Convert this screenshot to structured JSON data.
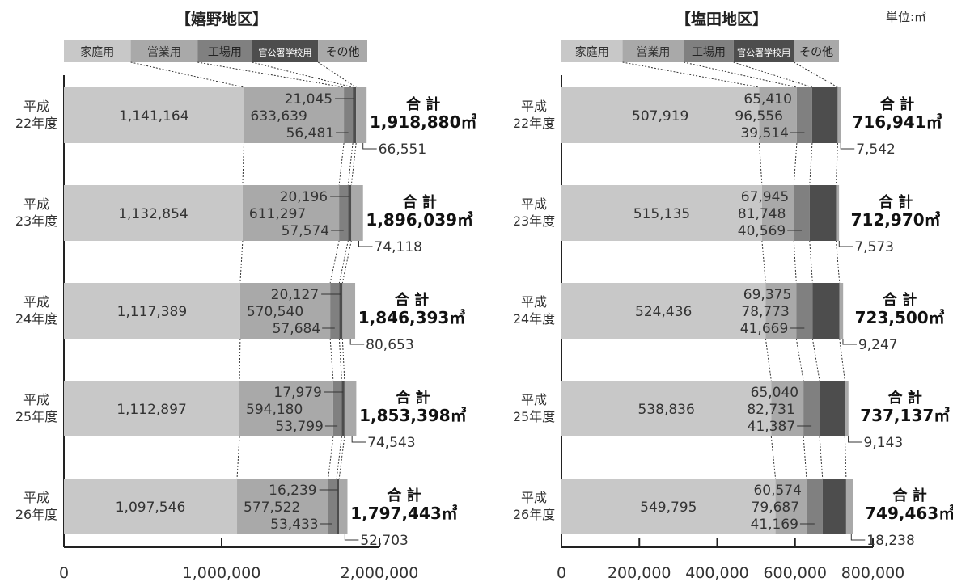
{
  "unit_label": "単位:㎥",
  "colors": {
    "household": "#c8c8c8",
    "business": "#a9a9a9",
    "industrial": "#808080",
    "government_school": "#4d4d4d",
    "other": "#a9a9a9",
    "text": "#333333",
    "total_text": "#111111"
  },
  "chart_data": [
    {
      "type": "bar",
      "orientation": "horizontal",
      "stacked": true,
      "title": "【嬉野地区】",
      "legend": [
        "家庭用",
        "営業用",
        "工場用",
        "官公署学校用",
        "その他"
      ],
      "legend_placement": "top",
      "categories": [
        [
          "平成",
          "22年度"
        ],
        [
          "平成",
          "23年度"
        ],
        [
          "平成",
          "24年度"
        ],
        [
          "平成",
          "25年度"
        ],
        [
          "平成",
          "26年度"
        ]
      ],
      "series": [
        {
          "name": "家庭用",
          "values": [
            1141164,
            1132854,
            1117389,
            1112897,
            1097546
          ],
          "labels": [
            "1,141,164",
            "1,132,854",
            "1,117,389",
            "1,112,897",
            "1,097,546"
          ]
        },
        {
          "name": "営業用",
          "values": [
            633639,
            611297,
            570540,
            594180,
            577522
          ],
          "labels": [
            "633,639",
            "611,297",
            "570,540",
            "594,180",
            "577,522"
          ]
        },
        {
          "name": "工場用",
          "values": [
            56481,
            57574,
            57684,
            53799,
            53433
          ],
          "labels": [
            "56,481",
            "57,574",
            "57,684",
            "53,799",
            "53,433"
          ]
        },
        {
          "name": "官公署学校用",
          "values": [
            21045,
            20196,
            20127,
            17979,
            16239
          ],
          "labels": [
            "21,045",
            "20,196",
            "20,127",
            "17,979",
            "16,239"
          ]
        },
        {
          "name": "その他",
          "values": [
            66551,
            74118,
            80653,
            74543,
            52703
          ],
          "labels": [
            "66,551",
            "74,118",
            "80,653",
            "74,543",
            "52,703"
          ]
        }
      ],
      "total_label": "合 計",
      "totals": [
        "1,918,880㎥",
        "1,896,039㎥",
        "1,846,393㎥",
        "1,853,398㎥",
        "1,797,443㎥"
      ],
      "xlim": [
        0,
        2000000
      ],
      "xticks": [
        0,
        1000000,
        2000000
      ],
      "xtick_labels": [
        "0",
        "1,000,000",
        "2,000,000"
      ]
    },
    {
      "type": "bar",
      "orientation": "horizontal",
      "stacked": true,
      "title": "【塩田地区】",
      "legend": [
        "家庭用",
        "営業用",
        "工場用",
        "官公署学校用",
        "その他"
      ],
      "legend_placement": "top",
      "categories": [
        [
          "平成",
          "22年度"
        ],
        [
          "平成",
          "23年度"
        ],
        [
          "平成",
          "24年度"
        ],
        [
          "平成",
          "25年度"
        ],
        [
          "平成",
          "26年度"
        ]
      ],
      "series": [
        {
          "name": "家庭用",
          "values": [
            507919,
            515135,
            524436,
            538836,
            549795
          ],
          "labels": [
            "507,919",
            "515,135",
            "524,436",
            "538,836",
            "549,795"
          ]
        },
        {
          "name": "営業用",
          "values": [
            96556,
            81748,
            78773,
            82731,
            79687
          ],
          "labels": [
            "96,556",
            "81,748",
            "78,773",
            "82,731",
            "79,687"
          ]
        },
        {
          "name": "工場用",
          "values": [
            39514,
            40569,
            41669,
            41387,
            41169
          ],
          "labels": [
            "39,514",
            "40,569",
            "41,669",
            "41,387",
            "41,169"
          ]
        },
        {
          "name": "官公署学校用",
          "values": [
            65410,
            67945,
            69375,
            65040,
            60574
          ],
          "labels": [
            "65,410",
            "67,945",
            "69,375",
            "65,040",
            "60,574"
          ]
        },
        {
          "name": "その他",
          "values": [
            7542,
            7573,
            9247,
            9143,
            18238
          ],
          "labels": [
            "7,542",
            "7,573",
            "9,247",
            "9,143",
            "18,238"
          ]
        }
      ],
      "total_label": "合 計",
      "totals": [
        "716,941㎥",
        "712,970㎥",
        "723,500㎥",
        "737,137㎥",
        "749,463㎥"
      ],
      "xlim": [
        0,
        800000
      ],
      "xticks": [
        0,
        200000,
        400000,
        600000,
        800000
      ],
      "xtick_labels": [
        "0",
        "200,000",
        "400,000",
        "600,000",
        "800,000"
      ]
    }
  ]
}
